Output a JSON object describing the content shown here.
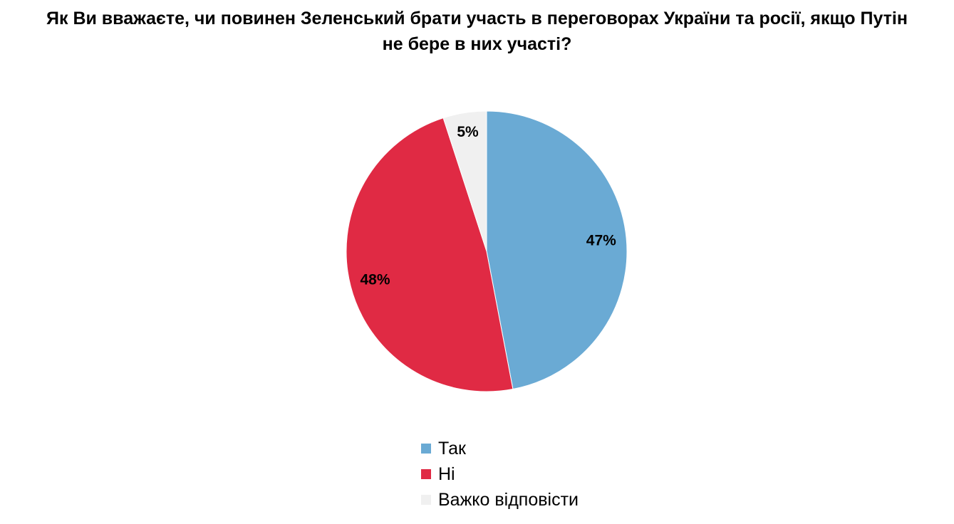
{
  "title": {
    "line1": "Як Ви вважаєте, чи повинен Зеленський брати участь в переговорах України та росії, якщо Путін",
    "line2": "не бере в них участі?"
  },
  "chart_data": {
    "type": "pie",
    "categories": [
      "Так",
      "Ні",
      "Важко відповісти"
    ],
    "values": [
      47,
      48,
      5
    ],
    "labels": [
      "47%",
      "48%",
      "5%"
    ],
    "colors": [
      "#6aaad4",
      "#e02a44",
      "#f0f0f0"
    ],
    "start": "12 o'clock",
    "direction": "clockwise",
    "legend_position": "bottom"
  }
}
